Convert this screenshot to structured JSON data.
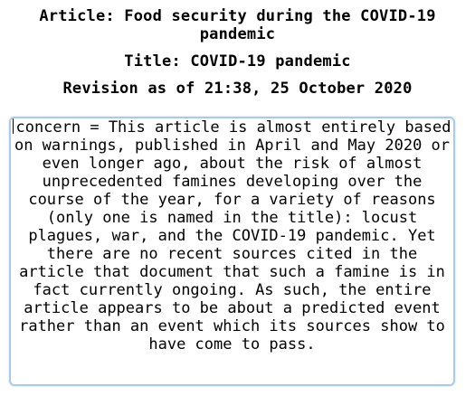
{
  "headings": {
    "article": "Article: Food security during the COVID-19 pandemic",
    "title": "Title: COVID-19 pandemic",
    "revision": "Revision as of 21:38, 25 October 2020"
  },
  "editor": {
    "text": "concern = This article is almost entirely based on warnings, published in April and May 2020 or even longer ago, about the risk of almost unprecedented famines developing over the course of the year, for a variety of reasons (only one is named in the title): locust plagues, war, and the COVID-19 pandemic. Yet there are no recent sources cited in the article that document that such a famine is in fact currently ongoing. As such, the entire article appears to be about a predicted event rather than an event which its sources show to have come to pass."
  }
}
